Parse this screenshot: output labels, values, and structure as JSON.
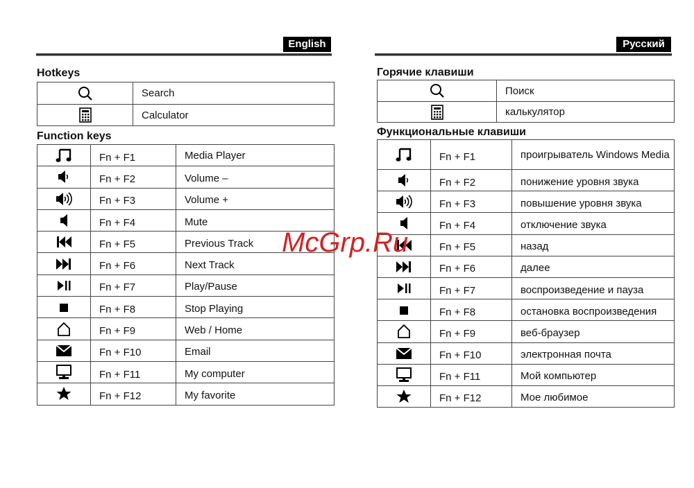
{
  "english": {
    "lang_label": "English",
    "hotkeys_title": "Hotkeys",
    "hotkeys": [
      {
        "icon": "search-icon",
        "label": "Search"
      },
      {
        "icon": "calculator-icon",
        "label": "Calculator"
      }
    ],
    "function_title": "Function keys",
    "function_keys": [
      {
        "icon": "music-note-icon",
        "key": "Fn + F1",
        "label": "Media Player"
      },
      {
        "icon": "volume-down-icon",
        "key": "Fn + F2",
        "label": "Volume –"
      },
      {
        "icon": "volume-up-icon",
        "key": "Fn + F3",
        "label": "Volume +"
      },
      {
        "icon": "mute-icon",
        "key": "Fn + F4",
        "label": "Mute"
      },
      {
        "icon": "previous-track-icon",
        "key": "Fn + F5",
        "label": "Previous Track"
      },
      {
        "icon": "next-track-icon",
        "key": "Fn + F6",
        "label": "Next Track"
      },
      {
        "icon": "play-pause-icon",
        "key": "Fn + F7",
        "label": "Play/Pause"
      },
      {
        "icon": "stop-icon",
        "key": "Fn + F8",
        "label": "Stop Playing"
      },
      {
        "icon": "home-icon",
        "key": "Fn + F9",
        "label": "Web / Home"
      },
      {
        "icon": "email-icon",
        "key": "Fn + F10",
        "label": "Email"
      },
      {
        "icon": "computer-icon",
        "key": "Fn + F11",
        "label": "My computer"
      },
      {
        "icon": "star-icon",
        "key": "Fn + F12",
        "label": "My favorite"
      }
    ]
  },
  "russian": {
    "lang_label": "Русский",
    "hotkeys_title": "Горячие клавиши",
    "hotkeys": [
      {
        "icon": "search-icon",
        "label": "Поиск"
      },
      {
        "icon": "calculator-icon",
        "label": "калькулятор"
      }
    ],
    "function_title": "Функциональные клавиши",
    "function_keys": [
      {
        "icon": "music-note-icon",
        "key": "Fn + F1",
        "label": "проигрыватель Windows Media"
      },
      {
        "icon": "volume-down-icon",
        "key": "Fn + F2",
        "label": "понижение уровня звука"
      },
      {
        "icon": "volume-up-icon",
        "key": "Fn + F3",
        "label": "повышение уровня звука"
      },
      {
        "icon": "mute-icon",
        "key": "Fn + F4",
        "label": "отключение звука"
      },
      {
        "icon": "previous-track-icon",
        "key": "Fn + F5",
        "label": "назад"
      },
      {
        "icon": "next-track-icon",
        "key": "Fn + F6",
        "label": "далее"
      },
      {
        "icon": "play-pause-icon",
        "key": "Fn + F7",
        "label": "воспроизведение и пауза"
      },
      {
        "icon": "stop-icon",
        "key": "Fn + F8",
        "label": "остановка воспроизведения"
      },
      {
        "icon": "home-icon",
        "key": "Fn + F9",
        "label": "веб-браузер"
      },
      {
        "icon": "email-icon",
        "key": "Fn + F10",
        "label": "электронная почта"
      },
      {
        "icon": "computer-icon",
        "key": "Fn + F11",
        "label": "Мой компьютер"
      },
      {
        "icon": "star-icon",
        "key": "Fn + F12",
        "label": "Мое любимое"
      }
    ]
  },
  "watermark": "McGrp.Ru"
}
